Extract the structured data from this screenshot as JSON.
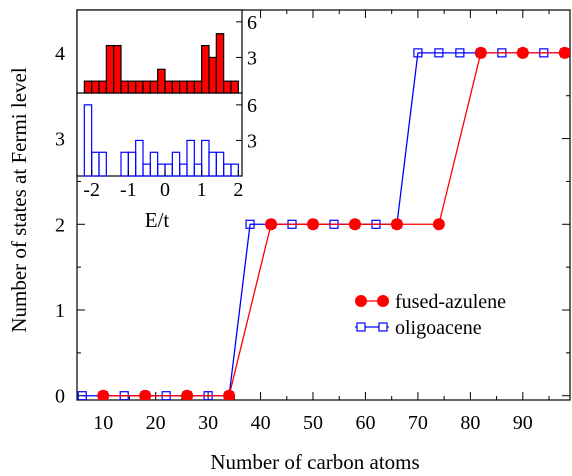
{
  "chart_data": {
    "main": {
      "type": "line",
      "xlabel": "Number of carbon atoms",
      "ylabel": "Number of states at Fermi level",
      "xlim": [
        5,
        99
      ],
      "ylim": [
        -0.05,
        4.5
      ],
      "xticks": [
        10,
        20,
        30,
        40,
        50,
        60,
        70,
        80,
        90
      ],
      "yticks": [
        0,
        1,
        2,
        3,
        4
      ],
      "legend": {
        "placement": "lower-right"
      },
      "series": [
        {
          "name": "fused-azulene",
          "color": "#ff0000",
          "marker": "filled-circle",
          "x": [
            10,
            18,
            26,
            34,
            42,
            50,
            58,
            66,
            74,
            82,
            90,
            98
          ],
          "y": [
            0,
            0,
            0,
            0,
            2,
            2,
            2,
            2,
            2,
            4,
            4,
            4
          ]
        },
        {
          "name": "oligoacene",
          "color": "#0000ff",
          "marker": "open-square",
          "x": [
            6,
            10,
            14,
            18,
            22,
            26,
            30,
            34,
            38,
            42,
            46,
            50,
            54,
            58,
            62,
            66,
            70,
            74,
            78,
            82,
            86,
            90,
            94,
            98
          ],
          "y": [
            0,
            0,
            0,
            0,
            0,
            0,
            0,
            0,
            2,
            2,
            2,
            2,
            2,
            2,
            2,
            2,
            4,
            4,
            4,
            4,
            4,
            4,
            4,
            4
          ]
        }
      ]
    },
    "inset": {
      "type": "bar",
      "xlabel": "E/t",
      "xlim": [
        -2.4,
        2.1
      ],
      "xticks": [
        "-2",
        "-1",
        "0",
        "1",
        "2"
      ],
      "bin_width": 0.2,
      "panels": [
        {
          "name": "fused-azulene DOS",
          "color": "#ff0000",
          "fill": "#ff0000",
          "ylim": [
            0,
            7
          ],
          "yticks": [
            "3",
            "6"
          ],
          "bin_left_edges": [
            -2.2,
            -2.0,
            -1.8,
            -1.6,
            -1.4,
            -1.2,
            -1.0,
            -0.8,
            -0.6,
            -0.4,
            -0.2,
            0.0,
            0.2,
            0.4,
            0.6,
            0.8,
            1.0,
            1.2,
            1.4,
            1.6,
            1.8
          ],
          "values": [
            1,
            1,
            1,
            4,
            4,
            1,
            1,
            1,
            1,
            1,
            2,
            1,
            1,
            1,
            1,
            1,
            4,
            3,
            5,
            1,
            1
          ]
        },
        {
          "name": "oligoacene DOS",
          "color": "#0000ff",
          "fill": "none",
          "ylim": [
            0,
            7
          ],
          "yticks": [
            "3",
            "6"
          ],
          "bin_left_edges": [
            -2.2,
            -2.0,
            -1.8,
            -1.6,
            -1.4,
            -1.2,
            -1.0,
            -0.8,
            -0.6,
            -0.4,
            -0.2,
            0.0,
            0.2,
            0.4,
            0.6,
            0.8,
            1.0,
            1.2,
            1.4,
            1.6,
            1.8
          ],
          "values": [
            6,
            2,
            2,
            0,
            0,
            2,
            2,
            3,
            1,
            2,
            1,
            1,
            2,
            1,
            3,
            1,
            3,
            2,
            2,
            1,
            1
          ]
        }
      ]
    }
  }
}
